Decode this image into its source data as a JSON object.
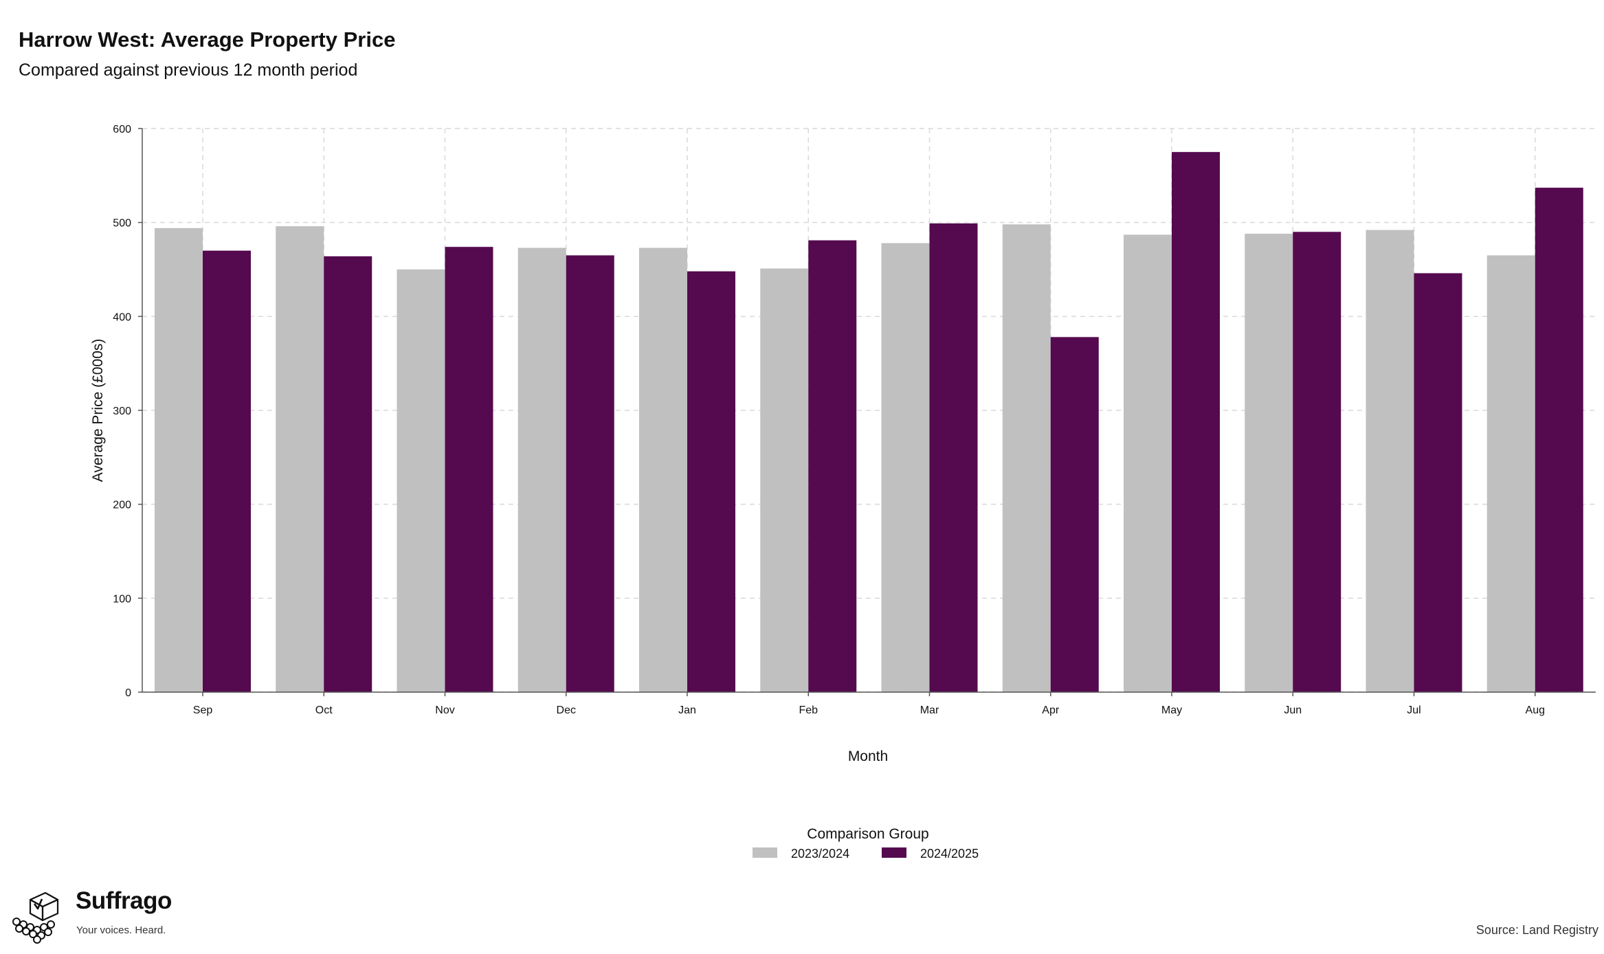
{
  "header": {
    "title": "Harrow West: Average Property Price",
    "subtitle": "Compared against previous 12 month period"
  },
  "chart_data": {
    "type": "bar",
    "title": "Harrow West: Average Property Price",
    "subtitle": "Compared against previous 12 month period",
    "xlabel": "Month",
    "ylabel": "Average Price (£000s)",
    "categories": [
      "Sep",
      "Oct",
      "Nov",
      "Dec",
      "Jan",
      "Feb",
      "Mar",
      "Apr",
      "May",
      "Jun",
      "Jul",
      "Aug"
    ],
    "series": [
      {
        "name": "2023/2024",
        "color": "#c0c0c0",
        "values": [
          494,
          496,
          450,
          473,
          473,
          451,
          478,
          498,
          487,
          488,
          492,
          465
        ]
      },
      {
        "name": "2024/2025",
        "color": "#550a4f",
        "values": [
          470,
          464,
          474,
          465,
          448,
          481,
          499,
          378,
          575,
          490,
          446,
          537
        ]
      }
    ],
    "ylim": [
      0,
      600
    ],
    "yticks": [
      0,
      100,
      200,
      300,
      400,
      500,
      600
    ],
    "grid": true,
    "legend": {
      "title": "Comparison Group",
      "position": "bottom-center"
    }
  },
  "footer": {
    "brand_name": "Suffrago",
    "brand_tagline": "Your voices. Heard.",
    "logo_icon": "ballot-box-icon",
    "source": "Source: Land Registry"
  }
}
